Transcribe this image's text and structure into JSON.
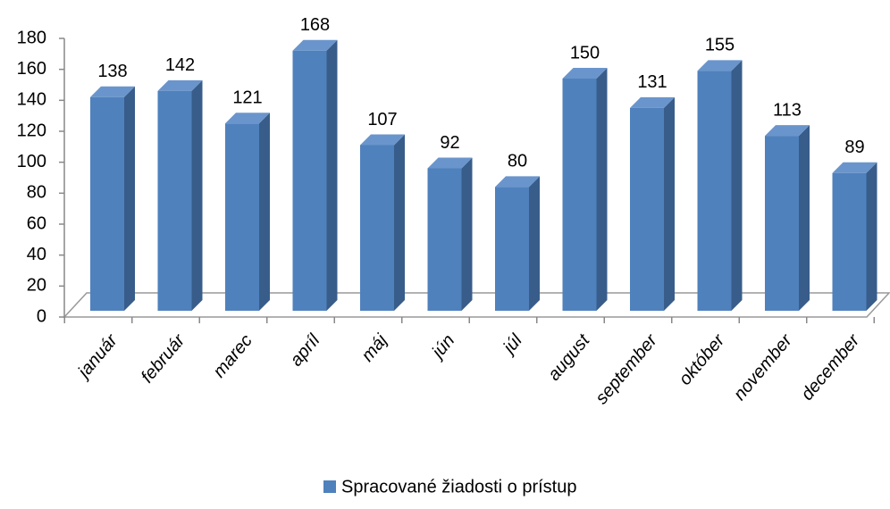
{
  "chart_data": {
    "type": "bar3d",
    "categories": [
      "január",
      "február",
      "marec",
      "apríl",
      "máj",
      "jún",
      "júl",
      "august",
      "september",
      "október",
      "november",
      "december"
    ],
    "series": [
      {
        "name": "Spracované žiadosti o prístup",
        "color": "#4f81bd",
        "values": [
          138,
          142,
          121,
          168,
          107,
          92,
          80,
          150,
          131,
          155,
          113,
          89
        ]
      }
    ],
    "ylim": [
      0,
      180
    ],
    "yticks": [
      0,
      20,
      40,
      60,
      80,
      100,
      120,
      140,
      160,
      180
    ]
  }
}
